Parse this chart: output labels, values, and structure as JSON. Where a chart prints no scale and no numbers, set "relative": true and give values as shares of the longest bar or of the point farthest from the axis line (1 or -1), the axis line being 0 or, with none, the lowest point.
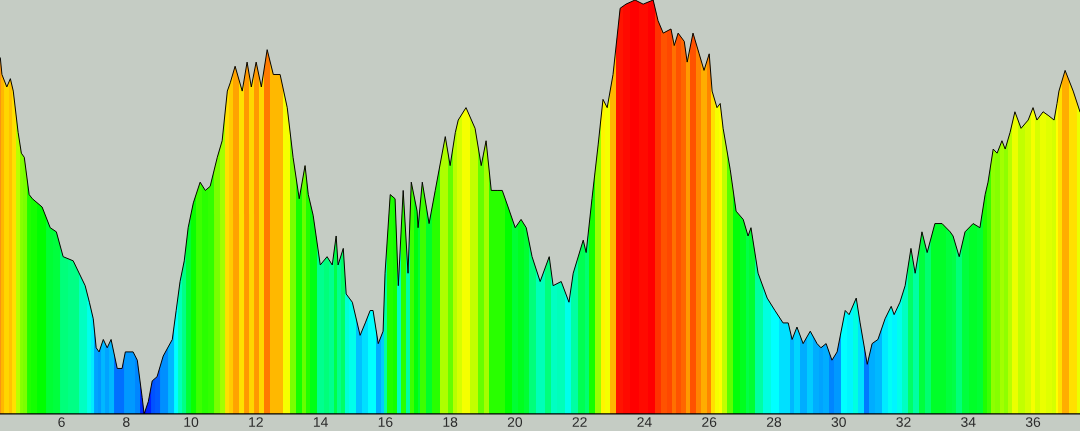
{
  "chart_data": {
    "type": "area",
    "relative": true,
    "x": [
      4.11,
      4.16,
      4.31,
      4.42,
      4.51,
      4.66,
      4.76,
      4.85,
      5.0,
      5.1,
      5.4,
      5.65,
      5.84,
      6.05,
      6.36,
      6.73,
      6.86,
      6.98,
      7.07,
      7.16,
      7.29,
      7.41,
      7.53,
      7.72,
      7.87,
      7.97,
      8.21,
      8.34,
      8.49,
      8.55,
      8.68,
      8.8,
      8.95,
      9.14,
      9.42,
      9.54,
      9.66,
      9.79,
      9.91,
      10.07,
      10.28,
      10.44,
      10.59,
      10.81,
      10.96,
      11.12,
      11.21,
      11.36,
      11.58,
      11.73,
      11.86,
      12.01,
      12.17,
      12.35,
      12.54,
      12.75,
      12.97,
      13.15,
      13.34,
      13.52,
      13.62,
      13.77,
      13.99,
      14.2,
      14.36,
      14.48,
      14.54,
      14.7,
      14.79,
      14.98,
      15.22,
      15.38,
      15.53,
      15.62,
      15.78,
      15.93,
      15.99,
      16.15,
      16.3,
      16.4,
      16.55,
      16.7,
      16.8,
      16.98,
      17.01,
      17.14,
      17.35,
      17.54,
      17.85,
      18.0,
      18.16,
      18.25,
      18.49,
      18.77,
      18.96,
      19.11,
      19.27,
      19.45,
      19.61,
      19.79,
      20.01,
      20.19,
      20.35,
      20.53,
      20.78,
      21.06,
      21.18,
      21.43,
      21.67,
      21.8,
      22.11,
      22.2,
      22.38,
      22.57,
      22.72,
      22.85,
      23.03,
      23.25,
      23.43,
      23.71,
      23.96,
      24.27,
      24.42,
      24.58,
      24.82,
      24.92,
      25.04,
      25.23,
      25.32,
      25.5,
      25.69,
      25.84,
      26.0,
      26.09,
      26.24,
      26.34,
      26.43,
      26.65,
      26.83,
      27.05,
      27.2,
      27.29,
      27.51,
      27.79,
      28.03,
      28.28,
      28.44,
      28.56,
      28.71,
      28.9,
      29.12,
      29.33,
      29.45,
      29.61,
      29.79,
      29.95,
      30.2,
      30.32,
      30.54,
      30.66,
      30.88,
      31.03,
      31.21,
      31.43,
      31.62,
      31.71,
      31.89,
      32.05,
      32.23,
      32.36,
      32.57,
      32.73,
      32.97,
      33.19,
      33.44,
      33.53,
      33.72,
      33.9,
      34.15,
      34.36,
      34.52,
      34.61,
      34.77,
      34.89,
      35.04,
      35.14,
      35.29,
      35.44,
      35.63,
      35.85,
      36.0,
      36.12,
      36.31,
      36.49,
      36.65,
      36.74,
      36.8,
      36.99,
      37.24,
      37.45
    ],
    "values": [
      0.86,
      0.82,
      0.79,
      0.81,
      0.78,
      0.68,
      0.63,
      0.62,
      0.53,
      0.52,
      0.5,
      0.45,
      0.44,
      0.38,
      0.37,
      0.31,
      0.27,
      0.23,
      0.16,
      0.15,
      0.18,
      0.16,
      0.18,
      0.11,
      0.11,
      0.15,
      0.15,
      0.13,
      0.04,
      0.0,
      0.03,
      0.08,
      0.09,
      0.14,
      0.18,
      0.25,
      0.32,
      0.37,
      0.45,
      0.51,
      0.56,
      0.54,
      0.55,
      0.62,
      0.66,
      0.78,
      0.8,
      0.84,
      0.78,
      0.85,
      0.79,
      0.85,
      0.79,
      0.88,
      0.82,
      0.82,
      0.74,
      0.62,
      0.52,
      0.6,
      0.53,
      0.48,
      0.36,
      0.38,
      0.36,
      0.43,
      0.36,
      0.4,
      0.29,
      0.27,
      0.19,
      0.22,
      0.25,
      0.25,
      0.17,
      0.2,
      0.34,
      0.53,
      0.52,
      0.31,
      0.54,
      0.34,
      0.56,
      0.49,
      0.45,
      0.56,
      0.46,
      0.54,
      0.67,
      0.6,
      0.68,
      0.71,
      0.74,
      0.69,
      0.6,
      0.66,
      0.54,
      0.54,
      0.54,
      0.5,
      0.45,
      0.47,
      0.45,
      0.38,
      0.32,
      0.38,
      0.31,
      0.32,
      0.27,
      0.34,
      0.42,
      0.39,
      0.52,
      0.65,
      0.76,
      0.74,
      0.82,
      0.98,
      0.99,
      1.0,
      0.99,
      1.0,
      0.95,
      0.92,
      0.93,
      0.89,
      0.92,
      0.9,
      0.85,
      0.92,
      0.87,
      0.83,
      0.87,
      0.78,
      0.74,
      0.75,
      0.69,
      0.59,
      0.49,
      0.47,
      0.43,
      0.45,
      0.34,
      0.28,
      0.25,
      0.22,
      0.22,
      0.18,
      0.21,
      0.17,
      0.2,
      0.17,
      0.16,
      0.17,
      0.13,
      0.15,
      0.25,
      0.24,
      0.28,
      0.22,
      0.12,
      0.17,
      0.18,
      0.23,
      0.26,
      0.24,
      0.27,
      0.31,
      0.4,
      0.34,
      0.44,
      0.39,
      0.46,
      0.46,
      0.44,
      0.43,
      0.38,
      0.44,
      0.46,
      0.45,
      0.53,
      0.56,
      0.64,
      0.63,
      0.66,
      0.64,
      0.68,
      0.73,
      0.69,
      0.71,
      0.74,
      0.71,
      0.73,
      0.72,
      0.71,
      0.75,
      0.78,
      0.83,
      0.78,
      0.73
    ],
    "colors": [
      "#ff8f00",
      "#ffb800",
      "#ffd600",
      "#ffc200",
      "#ffe000",
      "#b8ff00",
      "#85ff00",
      "#7aff00",
      "#1fff00",
      "#14ff00",
      "#00ff00",
      "#00ff33",
      "#00ff3d",
      "#00ff7a",
      "#00ff85",
      "#00ffc2",
      "#00ffeb",
      "#00ebff",
      "#00a3ff",
      "#0099ff",
      "#00b8ff",
      "#00a3ff",
      "#00b8ff",
      "#0070ff",
      "#0070ff",
      "#0099ff",
      "#0099ff",
      "#0085ff",
      "#0029ff",
      "#0000ff",
      "#001fff",
      "#0052ff",
      "#005cff",
      "#008fff",
      "#00b8ff",
      "#00ffff",
      "#00ffb8",
      "#00ff85",
      "#00ff33",
      "#0aff00",
      "#3dff00",
      "#29ff00",
      "#33ff00",
      "#7aff00",
      "#a3ff00",
      "#ffe000",
      "#ffcc00",
      "#ffa300",
      "#ffe000",
      "#ff9900",
      "#ffd600",
      "#ff9900",
      "#ffd600",
      "#ff7a00",
      "#ffb800",
      "#ffb800",
      "#f5ff00",
      "#7aff00",
      "#14ff00",
      "#66ff00",
      "#1fff00",
      "#00ff14",
      "#00ff8f",
      "#00ff7a",
      "#00ff8f",
      "#00ff47",
      "#00ff8f",
      "#00ff66",
      "#00ffd6",
      "#00ffeb",
      "#00c2ff",
      "#00e0ff",
      "#00ffff",
      "#00ffff",
      "#00adff",
      "#00ccff",
      "#00ffa3",
      "#1fff00",
      "#14ff00",
      "#00ffc2",
      "#29ff00",
      "#00ffa3",
      "#3dff00",
      "#00ff0a",
      "#00ff33",
      "#3dff00",
      "#00ff29",
      "#29ff00",
      "#adff00",
      "#66ff00",
      "#b8ff00",
      "#d6ff00",
      "#f5ff00",
      "#c2ff00",
      "#66ff00",
      "#a3ff00",
      "#29ff00",
      "#29ff00",
      "#29ff00",
      "#00ff00",
      "#00ff33",
      "#00ff1f",
      "#00ff33",
      "#00ff7a",
      "#00ffb8",
      "#00ff7a",
      "#00ffc2",
      "#00ffb8",
      "#00ffeb",
      "#00ffa3",
      "#00ff52",
      "#00ff70",
      "#14ff00",
      "#99ff00",
      "#fff500",
      "#f5ff00",
      "#ffb800",
      "#ff1400",
      "#ff0a00",
      "#ff0000",
      "#ff0a00",
      "#ff0000",
      "#ff3300",
      "#ff5200",
      "#ff4700",
      "#ff7000",
      "#ff5200",
      "#ff6600",
      "#ff9900",
      "#ff5200",
      "#ff8500",
      "#ffad00",
      "#ff8500",
      "#ffe000",
      "#f5ff00",
      "#ffff00",
      "#c2ff00",
      "#5cff00",
      "#00ff0a",
      "#00ff1f",
      "#00ff47",
      "#00ff33",
      "#00ffa3",
      "#00ffe0",
      "#00ffff",
      "#00e0ff",
      "#00e0ff",
      "#00b8ff",
      "#00d6ff",
      "#00adff",
      "#00ccff",
      "#00adff",
      "#00a3ff",
      "#00adff",
      "#0085ff",
      "#0099ff",
      "#00ffff",
      "#00f5ff",
      "#00ffe0",
      "#00e0ff",
      "#007aff",
      "#00adff",
      "#00b8ff",
      "#00ebff",
      "#00fff5",
      "#00f5ff",
      "#00ffeb",
      "#00ffc2",
      "#00ff66",
      "#00ffa3",
      "#00ff3d",
      "#00ff70",
      "#00ff29",
      "#00ff29",
      "#00ff3d",
      "#00ff47",
      "#00ff7a",
      "#00ff3d",
      "#00ff29",
      "#00ff33",
      "#1fff00",
      "#3dff00",
      "#8fff00",
      "#85ff00",
      "#a3ff00",
      "#8fff00",
      "#b8ff00",
      "#ebff00",
      "#c2ff00",
      "#d6ff00",
      "#f5ff00",
      "#d6ff00",
      "#ebff00",
      "#e0ff00",
      "#d6ff00",
      "#ffff00",
      "#ffe000",
      "#ffad00",
      "#ffe000",
      "#ebff00"
    ],
    "xlim": [
      4.1,
      37.45
    ],
    "xticks": [
      6,
      8,
      10,
      12,
      14,
      16,
      18,
      20,
      22,
      24,
      26,
      28,
      30,
      32,
      34,
      36
    ],
    "tick_labels": "x"
  }
}
